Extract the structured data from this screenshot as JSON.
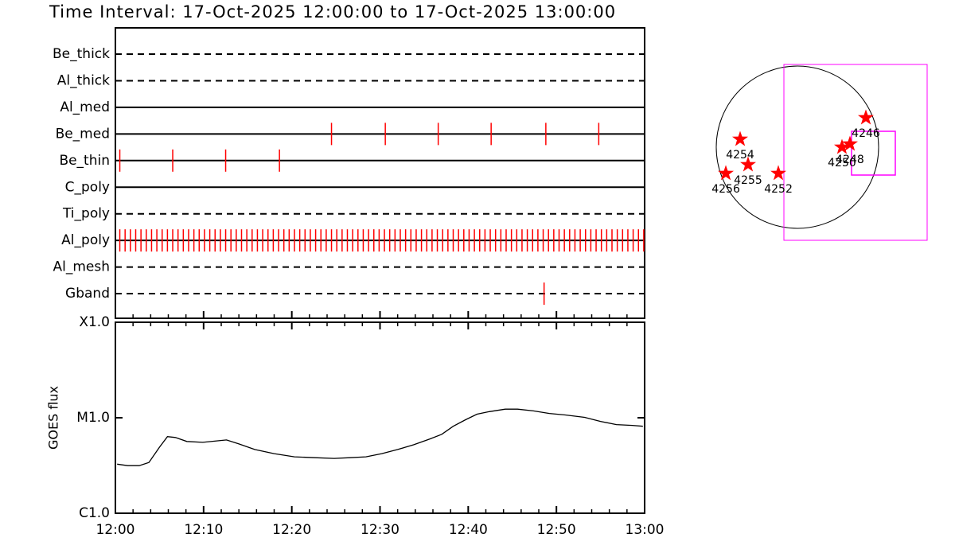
{
  "chart_data": [
    {
      "type": "timeline",
      "title": "Time Interval: 17-Oct-2025 12:00:00 to 17-Oct-2025 13:00:00",
      "xlim": [
        0,
        60
      ],
      "color": "#ff0000",
      "rows": [
        {
          "name": "Be_thick",
          "style": "dashed",
          "times": []
        },
        {
          "name": "Al_thick",
          "style": "dashed",
          "times": []
        },
        {
          "name": "Al_med",
          "style": "solid",
          "times": []
        },
        {
          "name": "Be_med",
          "style": "solid",
          "times": [
            24.5,
            30.6,
            36.6,
            42.6,
            48.8,
            54.8
          ]
        },
        {
          "name": "Be_thin",
          "style": "solid",
          "times": [
            0.5,
            6.5,
            12.5,
            18.6
          ]
        },
        {
          "name": "C_poly",
          "style": "solid",
          "times": []
        },
        {
          "name": "Ti_poly",
          "style": "dashed",
          "times": []
        },
        {
          "name": "Al_poly",
          "style": "solid",
          "times": [
            0.5,
            1.1,
            1.7,
            2.3,
            2.9,
            3.5,
            4.1,
            4.7,
            5.3,
            5.9,
            6.5,
            7.1,
            7.7,
            8.3,
            8.9,
            9.5,
            10.1,
            10.7,
            11.3,
            11.9,
            12.5,
            13.1,
            13.7,
            14.3,
            14.9,
            15.5,
            16.1,
            16.7,
            17.3,
            17.9,
            18.5,
            19.1,
            19.7,
            20.3,
            20.9,
            21.5,
            22.1,
            22.7,
            23.3,
            23.9,
            24.5,
            25.1,
            25.7,
            26.3,
            26.9,
            27.5,
            28.1,
            28.7,
            29.3,
            29.9,
            30.5,
            31.1,
            31.7,
            32.3,
            32.9,
            33.5,
            34.1,
            34.7,
            35.3,
            35.9,
            36.5,
            37.1,
            37.7,
            38.3,
            38.9,
            39.5,
            40.1,
            40.7,
            41.3,
            41.9,
            42.5,
            43.1,
            43.7,
            44.3,
            44.9,
            45.5,
            46.1,
            46.7,
            47.3,
            47.9,
            48.5,
            49.1,
            49.7,
            50.3,
            50.9,
            51.5,
            52.1,
            52.7,
            53.3,
            53.9,
            54.5,
            55.1,
            55.7,
            56.3,
            56.9,
            57.5,
            58.1,
            58.7,
            59.3,
            59.9
          ]
        },
        {
          "name": "Al_mesh",
          "style": "dashed",
          "times": []
        },
        {
          "name": "Gband",
          "style": "dashed",
          "times": [
            48.6
          ]
        }
      ]
    },
    {
      "type": "line",
      "ylabel": "GOES flux",
      "log": true,
      "color": "#000000",
      "x": [
        0.2,
        1.4,
        2.7,
        3.8,
        5.0,
        5.9,
        6.8,
        8.1,
        9.9,
        12.6,
        14.0,
        15.8,
        18.0,
        20.3,
        22.6,
        24.8,
        26.6,
        28.4,
        30.2,
        32.0,
        33.8,
        35.6,
        37.0,
        38.3,
        39.7,
        41.0,
        42.4,
        44.2,
        45.6,
        47.4,
        49.2,
        51.0,
        53.2,
        55.0,
        56.8,
        58.6,
        59.8
      ],
      "values": [
        3.27e-06,
        3.15e-06,
        3.15e-06,
        3.4e-06,
        4.92e-06,
        6.34e-06,
        6.21e-06,
        5.64e-06,
        5.53e-06,
        5.86e-06,
        5.32e-06,
        4.65e-06,
        4.21e-06,
        3.9e-06,
        3.82e-06,
        3.75e-06,
        3.82e-06,
        3.9e-06,
        4.21e-06,
        4.65e-06,
        5.21e-06,
        5.97e-06,
        6.71e-06,
        8.15e-06,
        9.53e-06,
        1.09e-05,
        1.16e-05,
        1.23e-05,
        1.23e-05,
        1.18e-05,
        1.11e-05,
        1.07e-05,
        1.01e-05,
        9.16e-06,
        8.48e-06,
        8.32e-06,
        8.15e-06
      ],
      "xlim": [
        0,
        60
      ],
      "xticks": [
        {
          "value": 0,
          "label": "12:00"
        },
        {
          "value": 10,
          "label": "12:10"
        },
        {
          "value": 20,
          "label": "12:20"
        },
        {
          "value": 30,
          "label": "12:30"
        },
        {
          "value": 40,
          "label": "12:40"
        },
        {
          "value": 50,
          "label": "12:50"
        },
        {
          "value": 60,
          "label": "13:00"
        }
      ],
      "xminorticks": [
        2,
        4,
        6,
        8,
        12,
        14,
        16,
        18,
        22,
        24,
        26,
        28,
        32,
        34,
        36,
        38,
        42,
        44,
        46,
        48,
        52,
        54,
        56,
        58
      ],
      "ylim": [
        1e-06,
        0.0001
      ],
      "yticks": [
        {
          "value": 1e-06,
          "label": "C1.0"
        },
        {
          "value": 1e-05,
          "label": "M1.0"
        },
        {
          "value": 0.0001,
          "label": "X1.0"
        }
      ]
    },
    {
      "type": "map",
      "color": "#ff0000",
      "points": [
        {
          "label": "4246",
          "x": 822,
          "y": 354
        },
        {
          "label": "4248",
          "x": 631,
          "y": 38
        },
        {
          "label": "4250",
          "x": 535,
          "y": 0
        },
        {
          "label": "4254",
          "x": -688,
          "y": 96
        },
        {
          "label": "4255",
          "x": -593,
          "y": -210
        },
        {
          "label": "4256",
          "x": -860,
          "y": -315
        },
        {
          "label": "4252",
          "x": -229,
          "y": -315
        }
      ]
    }
  ]
}
